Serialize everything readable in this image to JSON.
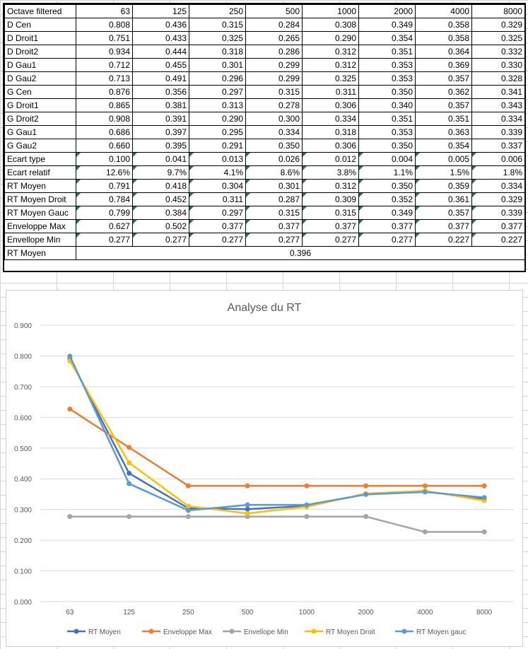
{
  "table": {
    "header": [
      "Octave filtered",
      "63",
      "125",
      "250",
      "500",
      "1000",
      "2000",
      "4000",
      "8000"
    ],
    "rows": [
      {
        "label": "D Cen",
        "values": [
          "0.808",
          "0.436",
          "0.315",
          "0.284",
          "0.308",
          "0.349",
          "0.358",
          "0.329"
        ]
      },
      {
        "label": "D Droit1",
        "values": [
          "0.751",
          "0.433",
          "0.325",
          "0.265",
          "0.290",
          "0.354",
          "0.358",
          "0.325"
        ]
      },
      {
        "label": "D Droit2",
        "values": [
          "0.934",
          "0.444",
          "0.318",
          "0.286",
          "0.312",
          "0.351",
          "0.364",
          "0.332"
        ]
      },
      {
        "label": "D Gau1",
        "values": [
          "0.712",
          "0.455",
          "0.301",
          "0.299",
          "0.312",
          "0.353",
          "0.369",
          "0.330"
        ]
      },
      {
        "label": "D Gau2",
        "values": [
          "0.713",
          "0.491",
          "0.296",
          "0.299",
          "0.325",
          "0.353",
          "0.357",
          "0.328"
        ]
      },
      {
        "label": "G Cen",
        "values": [
          "0.876",
          "0.356",
          "0.297",
          "0.315",
          "0.311",
          "0.350",
          "0.362",
          "0.341"
        ]
      },
      {
        "label": "G Droit1",
        "values": [
          "0.865",
          "0.381",
          "0.313",
          "0.278",
          "0.306",
          "0.340",
          "0.357",
          "0.343"
        ]
      },
      {
        "label": "G Droit2",
        "values": [
          "0.908",
          "0.391",
          "0.290",
          "0.300",
          "0.334",
          "0.351",
          "0.351",
          "0.334"
        ]
      },
      {
        "label": "G Gau1",
        "values": [
          "0.686",
          "0.397",
          "0.295",
          "0.334",
          "0.318",
          "0.353",
          "0.363",
          "0.339"
        ]
      },
      {
        "label": "G Gau2",
        "values": [
          "0.660",
          "0.395",
          "0.291",
          "0.350",
          "0.306",
          "0.350",
          "0.354",
          "0.337"
        ]
      },
      {
        "label": "Ecart type",
        "flag": true,
        "values": [
          "0.100",
          "0.041",
          "0.013",
          "0.026",
          "0.012",
          "0.004",
          "0.005",
          "0.006"
        ]
      },
      {
        "label": "Ecart relatif",
        "flag": true,
        "values": [
          "12.6%",
          "9.7%",
          "4.1%",
          "8.6%",
          "3.8%",
          "1.1%",
          "1.5%",
          "1.8%"
        ]
      },
      {
        "label": "RT Moyen",
        "flag": true,
        "values": [
          "0.791",
          "0.418",
          "0.304",
          "0.301",
          "0.312",
          "0.350",
          "0.359",
          "0.334"
        ]
      },
      {
        "label": "RT Moyen Droit",
        "flag": true,
        "values": [
          "0.784",
          "0.452",
          "0.311",
          "0.287",
          "0.309",
          "0.352",
          "0.361",
          "0.329"
        ]
      },
      {
        "label": "RT Moyen Gauc",
        "flag": true,
        "values": [
          "0.799",
          "0.384",
          "0.297",
          "0.315",
          "0.315",
          "0.349",
          "0.357",
          "0.339"
        ]
      },
      {
        "label": "Enveloppe Max",
        "flag": true,
        "values": [
          "0.627",
          "0.502",
          "0.377",
          "0.377",
          "0.377",
          "0.377",
          "0.377",
          "0.377"
        ]
      },
      {
        "label": "Envellope Min",
        "flag": true,
        "values": [
          "0.277",
          "0.277",
          "0.277",
          "0.277",
          "0.277",
          "0.277",
          "0.227",
          "0.227"
        ]
      }
    ],
    "summary": {
      "label": "RT Moyen",
      "value": "0.396"
    }
  },
  "chart_data": {
    "type": "line",
    "title": "Analyse du RT",
    "categories": [
      "63",
      "125",
      "250",
      "500",
      "1000",
      "2000",
      "4000",
      "8000"
    ],
    "ylim": [
      0,
      0.9
    ],
    "yticks": [
      "0.000",
      "0.100",
      "0.200",
      "0.300",
      "0.400",
      "0.500",
      "0.600",
      "0.700",
      "0.800",
      "0.900"
    ],
    "grid": true,
    "legend_position": "bottom",
    "series": [
      {
        "name": "RT Moyen",
        "color": "#4472c4",
        "values": [
          0.791,
          0.418,
          0.304,
          0.301,
          0.312,
          0.35,
          0.359,
          0.334
        ]
      },
      {
        "name": "Enveloppe Max",
        "color": "#ed7d31",
        "values": [
          0.627,
          0.502,
          0.377,
          0.377,
          0.377,
          0.377,
          0.377,
          0.377
        ]
      },
      {
        "name": "Envellope Min",
        "color": "#a5a5a5",
        "values": [
          0.277,
          0.277,
          0.277,
          0.277,
          0.277,
          0.277,
          0.227,
          0.227
        ]
      },
      {
        "name": "RT Moyen Droit",
        "color": "#ffc000",
        "values": [
          0.784,
          0.452,
          0.311,
          0.287,
          0.309,
          0.352,
          0.361,
          0.329
        ]
      },
      {
        "name": "RT Moyen gauc",
        "color": "#5b9bd5",
        "values": [
          0.799,
          0.384,
          0.297,
          0.315,
          0.315,
          0.349,
          0.357,
          0.339
        ]
      }
    ]
  }
}
